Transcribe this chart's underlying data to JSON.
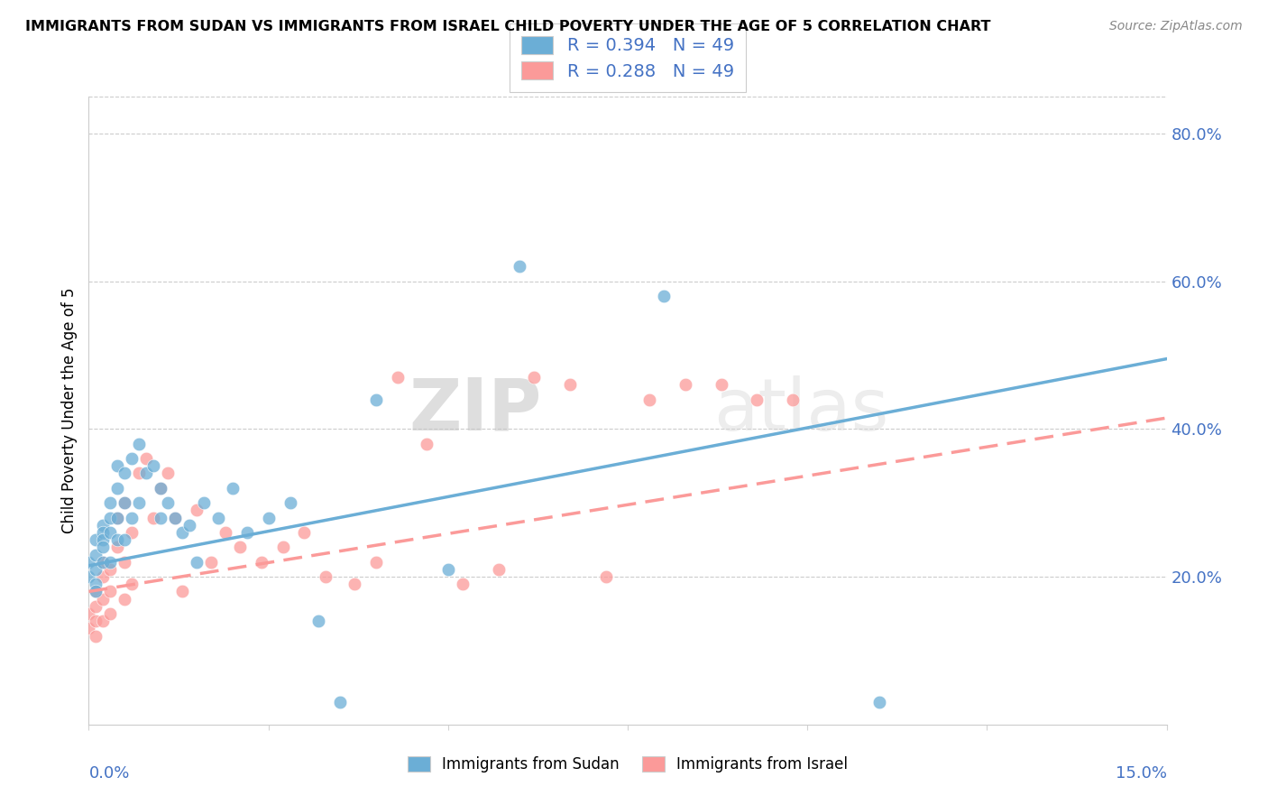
{
  "title": "IMMIGRANTS FROM SUDAN VS IMMIGRANTS FROM ISRAEL CHILD POVERTY UNDER THE AGE OF 5 CORRELATION CHART",
  "source": "Source: ZipAtlas.com",
  "ylabel": "Child Poverty Under the Age of 5",
  "legend_sudan": "R = 0.394   N = 49",
  "legend_israel": "R = 0.288   N = 49",
  "legend_label_sudan": "Immigrants from Sudan",
  "legend_label_israel": "Immigrants from Israel",
  "color_sudan": "#6baed6",
  "color_israel": "#fb9a99",
  "watermark_zip": "ZIP",
  "watermark_atlas": "atlas",
  "xlim": [
    0,
    0.15
  ],
  "ylim": [
    0,
    0.85
  ],
  "yticks": [
    0.2,
    0.4,
    0.6,
    0.8
  ],
  "ytick_labels": [
    "20.0%",
    "40.0%",
    "60.0%",
    "80.0%"
  ],
  "sudan_x": [
    0.0,
    0.0,
    0.001,
    0.001,
    0.001,
    0.001,
    0.001,
    0.002,
    0.002,
    0.002,
    0.002,
    0.002,
    0.003,
    0.003,
    0.003,
    0.003,
    0.004,
    0.004,
    0.004,
    0.004,
    0.005,
    0.005,
    0.005,
    0.006,
    0.006,
    0.007,
    0.007,
    0.008,
    0.009,
    0.01,
    0.01,
    0.011,
    0.012,
    0.013,
    0.014,
    0.015,
    0.016,
    0.018,
    0.02,
    0.022,
    0.025,
    0.028,
    0.032,
    0.035,
    0.04,
    0.05,
    0.06,
    0.08,
    0.11
  ],
  "sudan_y": [
    0.22,
    0.2,
    0.25,
    0.23,
    0.21,
    0.19,
    0.18,
    0.27,
    0.26,
    0.25,
    0.24,
    0.22,
    0.3,
    0.28,
    0.26,
    0.22,
    0.35,
    0.32,
    0.28,
    0.25,
    0.34,
    0.3,
    0.25,
    0.36,
    0.28,
    0.38,
    0.3,
    0.34,
    0.35,
    0.32,
    0.28,
    0.3,
    0.28,
    0.26,
    0.27,
    0.22,
    0.3,
    0.28,
    0.32,
    0.26,
    0.28,
    0.3,
    0.14,
    0.03,
    0.44,
    0.21,
    0.62,
    0.58,
    0.03
  ],
  "israel_x": [
    0.0,
    0.0,
    0.001,
    0.001,
    0.001,
    0.001,
    0.002,
    0.002,
    0.002,
    0.002,
    0.003,
    0.003,
    0.003,
    0.004,
    0.004,
    0.005,
    0.005,
    0.005,
    0.006,
    0.006,
    0.007,
    0.008,
    0.009,
    0.01,
    0.011,
    0.012,
    0.013,
    0.015,
    0.017,
    0.019,
    0.021,
    0.024,
    0.027,
    0.03,
    0.033,
    0.037,
    0.04,
    0.043,
    0.047,
    0.052,
    0.057,
    0.062,
    0.067,
    0.072,
    0.078,
    0.083,
    0.088,
    0.093,
    0.098
  ],
  "israel_y": [
    0.15,
    0.13,
    0.18,
    0.16,
    0.14,
    0.12,
    0.22,
    0.2,
    0.17,
    0.14,
    0.21,
    0.18,
    0.15,
    0.28,
    0.24,
    0.3,
    0.22,
    0.17,
    0.26,
    0.19,
    0.34,
    0.36,
    0.28,
    0.32,
    0.34,
    0.28,
    0.18,
    0.29,
    0.22,
    0.26,
    0.24,
    0.22,
    0.24,
    0.26,
    0.2,
    0.19,
    0.22,
    0.47,
    0.38,
    0.19,
    0.21,
    0.47,
    0.46,
    0.2,
    0.44,
    0.46,
    0.46,
    0.44,
    0.44
  ],
  "sudan_trendline_x": [
    0.0,
    0.15
  ],
  "sudan_trendline_y": [
    0.215,
    0.495
  ],
  "israel_trendline_x": [
    0.0,
    0.15
  ],
  "israel_trendline_y": [
    0.18,
    0.415
  ]
}
